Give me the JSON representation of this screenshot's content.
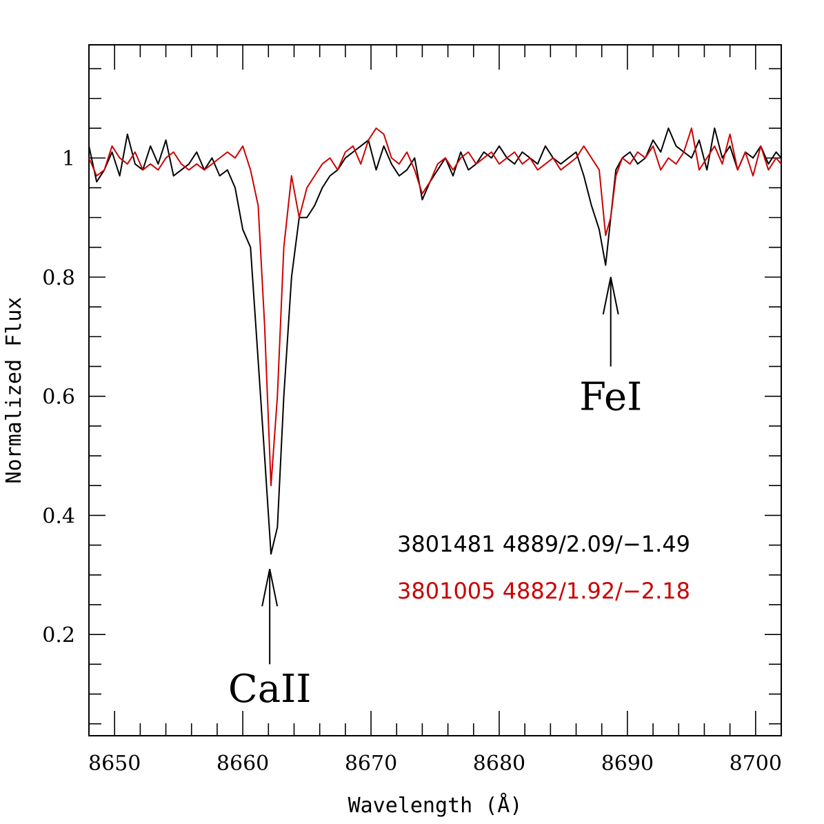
{
  "chart_data": {
    "type": "line",
    "title": "",
    "xlabel": "Wavelength (Å)",
    "ylabel": "Normalized Flux",
    "xlim": [
      8648,
      8702
    ],
    "ylim": [
      0.03,
      1.19
    ],
    "xticks": [
      8650,
      8660,
      8670,
      8680,
      8690,
      8700
    ],
    "xtick_labels": [
      "8650",
      "8660",
      "8670",
      "8680",
      "8690",
      "8700"
    ],
    "yticks": [
      0.2,
      0.4,
      0.6,
      0.8,
      1.0
    ],
    "ytick_labels": [
      "0.2",
      "0.4",
      "0.6",
      "0.8",
      "1"
    ],
    "series": [
      {
        "name": "3801481 4889/2.09/−1.49",
        "color": "#000000",
        "x": [
          8648.0,
          8648.6,
          8649.2,
          8649.8,
          8650.4,
          8651.0,
          8651.6,
          8652.2,
          8652.8,
          8653.4,
          8654.0,
          8654.6,
          8655.2,
          8655.8,
          8656.4,
          8657.0,
          8657.6,
          8658.2,
          8658.8,
          8659.4,
          8660.0,
          8660.6,
          8661.2,
          8661.7,
          8662.2,
          8662.7,
          8663.2,
          8663.8,
          8664.4,
          8665.0,
          8665.6,
          8666.2,
          8666.8,
          8667.4,
          8668.0,
          8668.6,
          8669.2,
          8669.8,
          8670.4,
          8671.0,
          8671.6,
          8672.2,
          8672.8,
          8673.4,
          8674.0,
          8674.6,
          8675.2,
          8675.8,
          8676.4,
          8677.0,
          8677.6,
          8678.2,
          8678.8,
          8679.4,
          8680.0,
          8680.6,
          8681.2,
          8681.8,
          8682.4,
          8683.0,
          8683.6,
          8684.2,
          8684.8,
          8685.4,
          8686.0,
          8686.6,
          8687.2,
          8687.8,
          8688.3,
          8688.7,
          8689.1,
          8689.6,
          8690.2,
          8690.8,
          8691.4,
          8692.0,
          8692.6,
          8693.2,
          8693.8,
          8694.4,
          8695.0,
          8695.6,
          8696.2,
          8696.8,
          8697.4,
          8698.0,
          8698.6,
          8699.2,
          8699.8,
          8700.4,
          8701.0,
          8701.6,
          8702.0
        ],
        "y": [
          1.02,
          0.96,
          0.98,
          1.01,
          0.97,
          1.04,
          0.99,
          0.98,
          1.02,
          0.99,
          1.03,
          0.97,
          0.98,
          0.99,
          1.01,
          0.98,
          1.0,
          0.97,
          0.98,
          0.95,
          0.88,
          0.85,
          0.66,
          0.5,
          0.335,
          0.38,
          0.6,
          0.8,
          0.9,
          0.9,
          0.92,
          0.95,
          0.97,
          0.98,
          1.0,
          1.01,
          1.02,
          1.03,
          0.98,
          1.02,
          0.99,
          0.97,
          0.98,
          1.0,
          0.93,
          0.96,
          0.98,
          1.0,
          0.97,
          1.01,
          0.98,
          0.99,
          1.01,
          1.0,
          1.02,
          1.0,
          0.99,
          1.01,
          1.0,
          0.99,
          1.02,
          1.0,
          0.99,
          1.0,
          1.01,
          0.97,
          0.92,
          0.88,
          0.82,
          0.9,
          0.98,
          1.0,
          1.01,
          0.99,
          1.0,
          1.03,
          1.01,
          1.05,
          1.02,
          1.01,
          1.0,
          1.03,
          0.98,
          1.05,
          1.0,
          1.02,
          0.98,
          1.01,
          1.0,
          1.02,
          0.99,
          1.01,
          1.0
        ]
      },
      {
        "name": "3801005 4882/1.92/−2.18",
        "color": "#cc0000",
        "x": [
          8648.0,
          8648.6,
          8649.2,
          8649.8,
          8650.4,
          8651.0,
          8651.6,
          8652.2,
          8652.8,
          8653.4,
          8654.0,
          8654.6,
          8655.2,
          8655.8,
          8656.4,
          8657.0,
          8657.6,
          8658.2,
          8658.8,
          8659.4,
          8660.0,
          8660.6,
          8661.2,
          8661.7,
          8662.2,
          8662.7,
          8663.2,
          8663.8,
          8664.4,
          8665.0,
          8665.6,
          8666.2,
          8666.8,
          8667.4,
          8668.0,
          8668.6,
          8669.2,
          8669.8,
          8670.4,
          8671.0,
          8671.6,
          8672.2,
          8672.8,
          8673.4,
          8674.0,
          8674.6,
          8675.2,
          8675.8,
          8676.4,
          8677.0,
          8677.6,
          8678.2,
          8678.8,
          8679.4,
          8680.0,
          8680.6,
          8681.2,
          8681.8,
          8682.4,
          8683.0,
          8683.6,
          8684.2,
          8684.8,
          8685.4,
          8686.0,
          8686.6,
          8687.2,
          8687.8,
          8688.3,
          8688.7,
          8689.1,
          8689.6,
          8690.2,
          8690.8,
          8691.4,
          8692.0,
          8692.6,
          8693.2,
          8693.8,
          8694.4,
          8695.0,
          8695.6,
          8696.2,
          8696.8,
          8697.4,
          8698.0,
          8698.6,
          8699.2,
          8699.8,
          8700.4,
          8701.0,
          8701.6,
          8702.0
        ],
        "y": [
          1.0,
          0.97,
          0.98,
          1.02,
          1.0,
          0.99,
          1.01,
          0.98,
          0.99,
          0.98,
          1.0,
          1.01,
          0.99,
          0.98,
          0.99,
          0.98,
          0.99,
          1.0,
          1.01,
          1.0,
          1.02,
          0.98,
          0.92,
          0.72,
          0.45,
          0.6,
          0.85,
          0.97,
          0.9,
          0.95,
          0.97,
          0.99,
          1.0,
          0.98,
          1.01,
          1.02,
          0.99,
          1.03,
          1.05,
          1.04,
          1.0,
          0.99,
          1.01,
          0.98,
          0.94,
          0.96,
          0.99,
          1.0,
          0.98,
          1.0,
          1.01,
          0.99,
          1.0,
          1.01,
          0.99,
          1.0,
          1.01,
          0.99,
          1.0,
          0.98,
          0.99,
          1.0,
          0.98,
          0.99,
          1.0,
          1.02,
          1.0,
          0.98,
          0.87,
          0.9,
          0.97,
          1.0,
          0.99,
          1.01,
          1.0,
          1.02,
          0.98,
          1.0,
          0.99,
          1.01,
          1.05,
          0.98,
          1.0,
          1.02,
          0.99,
          1.04,
          0.98,
          1.01,
          0.97,
          1.02,
          0.98,
          1.0,
          0.99
        ]
      }
    ],
    "annotations": [
      {
        "text": "CaII",
        "x": 8662.1,
        "arrow_tip_y": 0.31,
        "arrow_tail_y": 0.15,
        "label_y": 0.11
      },
      {
        "text": "FeI",
        "x": 8688.7,
        "arrow_tip_y": 0.8,
        "arrow_tail_y": 0.65,
        "label_y": 0.6
      }
    ],
    "legend": {
      "placement": "bottom-right",
      "entries": [
        {
          "text": "3801481  4889/2.09/−1.49",
          "color": "#000000"
        },
        {
          "text": "3801005  4882/1.92/−2.18",
          "color": "#cc0000"
        }
      ]
    }
  }
}
